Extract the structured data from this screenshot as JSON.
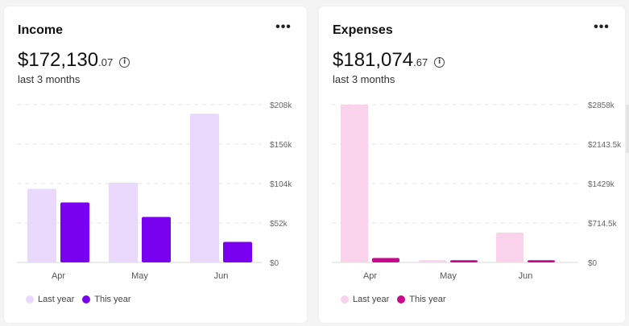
{
  "cards": [
    {
      "id": "income",
      "title": "Income",
      "amount_main": "$172,130",
      "amount_cents": ".07",
      "period": "last 3 months",
      "more_label": "•••",
      "info_label": "i",
      "colors": {
        "last_year": "#ead9fd",
        "this_year": "#7a00f0"
      },
      "legend": {
        "last_year": "Last year",
        "this_year": "This year"
      }
    },
    {
      "id": "expenses",
      "title": "Expenses",
      "amount_main": "$181,074",
      "amount_cents": ".67",
      "period": "last 3 months",
      "more_label": "•••",
      "info_label": "i",
      "colors": {
        "last_year": "#f9d2ec",
        "this_year": "#c8088c"
      },
      "legend": {
        "last_year": "Last year",
        "this_year": "This year"
      }
    }
  ],
  "chart_data": [
    {
      "type": "bar",
      "categories": [
        "Apr",
        "May",
        "Jun"
      ],
      "series": [
        {
          "name": "Last year",
          "values": [
            97,
            105,
            196
          ]
        },
        {
          "name": "This year",
          "values": [
            79,
            60,
            27
          ]
        }
      ],
      "ylim": [
        0,
        208
      ],
      "yticks": [
        "$0",
        "$52k",
        "$104k",
        "$156k",
        "$208k"
      ],
      "grid": true,
      "legend_position": "bottom-left"
    },
    {
      "type": "bar",
      "categories": [
        "Apr",
        "May",
        "Jun"
      ],
      "series": [
        {
          "name": "Last year",
          "values": [
            2858,
            40,
            540
          ]
        },
        {
          "name": "This year",
          "values": [
            80,
            40,
            40
          ]
        }
      ],
      "ylim": [
        0,
        2858
      ],
      "yticks": [
        "$0",
        "$714.5k",
        "$1429k",
        "$2143.5k",
        "$2858k"
      ],
      "grid": true,
      "legend_position": "bottom-left"
    }
  ]
}
